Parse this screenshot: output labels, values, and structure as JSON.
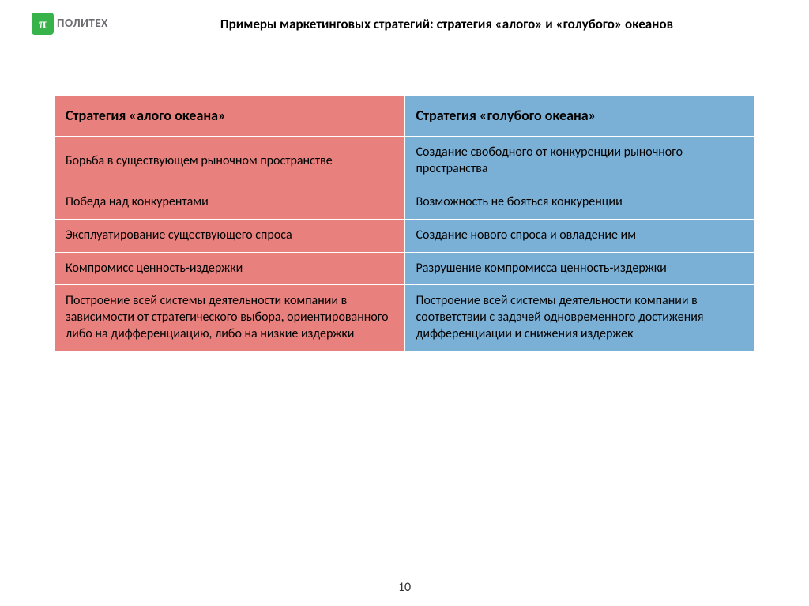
{
  "logo": {
    "symbol": "π",
    "text": "ПОЛИТЕХ"
  },
  "title": "Примеры маркетинговых стратегий: стратегия «алого» и «голубого» океанов",
  "table": {
    "headers": {
      "red": "Стратегия «алого океана»",
      "blue": "Стратегия «голубого океана»"
    },
    "rows": [
      {
        "red": "Борьба в существующем рыночном пространстве",
        "blue": "Создание свободного от конкуренции рыночного пространства"
      },
      {
        "red": "Победа над конкурентами",
        "blue": "Возможность не бояться конкуренции"
      },
      {
        "red": "Эксплуатирование существующего спроса",
        "blue": "Создание нового спроса и овладение им"
      },
      {
        "red": "Компромисс ценность-издержки",
        "blue": "Разрушение компромисса ценность-издержки"
      },
      {
        "red": "Построение всей системы деятельности компании в зависимости от стратегического выбора, ориентированного либо на дифференциацию, либо на низкие издержки",
        "blue": "Построение всей системы деятельности компании в соответствии с задачей одновременного достижения дифференциации и снижения издержек"
      }
    ],
    "colors": {
      "red": "#e8817d",
      "blue": "#7ab0d6",
      "border": "#ffffff"
    }
  },
  "page_number": "10"
}
